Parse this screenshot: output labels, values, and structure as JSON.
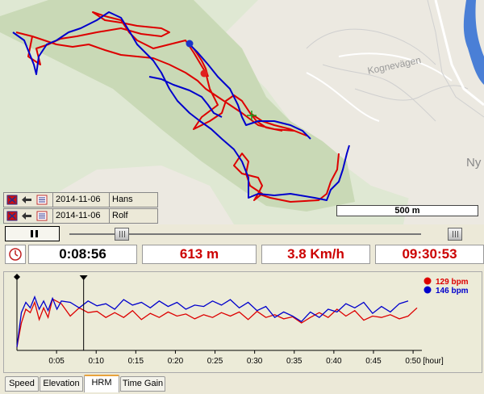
{
  "map": {
    "road_label": "Kognevägen",
    "place_label": "Ny",
    "scale_label": "500 m"
  },
  "runners": [
    {
      "date": "2014-11-06",
      "name": "Hans",
      "color": "#0000cc"
    },
    {
      "date": "2014-11-06",
      "name": "Rolf",
      "color": "#dd0000"
    }
  ],
  "stats": {
    "elapsed": "0:08:56",
    "distance": "613 m",
    "speed": "3.8 Km/h",
    "clock": "09:30:53"
  },
  "colors": {
    "stat_text": "#cc0000",
    "track_red": "#dd0000",
    "track_blue": "#0000cc"
  },
  "playback": {
    "position_fraction": 0.15
  },
  "icons": [
    "red-flag-icon",
    "arrow-left-icon",
    "list-icon",
    "pause-icon",
    "clock-icon"
  ],
  "tabs": [
    {
      "label": "Speed",
      "active": false
    },
    {
      "label": "Elevation",
      "active": false
    },
    {
      "label": "HRM",
      "active": true
    },
    {
      "label": "Time Gain",
      "active": false
    }
  ],
  "chart_data": {
    "type": "line",
    "xlabel": "[hour]",
    "x_ticks": [
      "0:05",
      "0:10",
      "0:15",
      "0:20",
      "0:25",
      "0:30",
      "0:35",
      "0:40",
      "0:45",
      "0:50"
    ],
    "xlim": [
      0,
      0.9
    ],
    "ylim": [
      0,
      100
    ],
    "cursor_x": 0.15,
    "series": [
      {
        "name": "129 bpm",
        "color": "#dd0000",
        "values": [
          [
            0,
            5
          ],
          [
            0.01,
            40
          ],
          [
            0.02,
            60
          ],
          [
            0.03,
            55
          ],
          [
            0.04,
            70
          ],
          [
            0.05,
            45
          ],
          [
            0.06,
            62
          ],
          [
            0.07,
            48
          ],
          [
            0.08,
            75
          ],
          [
            0.1,
            68
          ],
          [
            0.12,
            50
          ],
          [
            0.14,
            62
          ],
          [
            0.16,
            55
          ],
          [
            0.18,
            57
          ],
          [
            0.2,
            48
          ],
          [
            0.22,
            55
          ],
          [
            0.24,
            48
          ],
          [
            0.26,
            58
          ],
          [
            0.28,
            45
          ],
          [
            0.3,
            54
          ],
          [
            0.32,
            48
          ],
          [
            0.34,
            56
          ],
          [
            0.36,
            50
          ],
          [
            0.38,
            53
          ],
          [
            0.4,
            46
          ],
          [
            0.42,
            52
          ],
          [
            0.44,
            48
          ],
          [
            0.46,
            55
          ],
          [
            0.48,
            50
          ],
          [
            0.5,
            56
          ],
          [
            0.52,
            45
          ],
          [
            0.54,
            57
          ],
          [
            0.56,
            48
          ],
          [
            0.58,
            52
          ],
          [
            0.6,
            46
          ],
          [
            0.62,
            49
          ],
          [
            0.64,
            40
          ],
          [
            0.66,
            48
          ],
          [
            0.68,
            55
          ],
          [
            0.7,
            48
          ],
          [
            0.72,
            60
          ],
          [
            0.74,
            50
          ],
          [
            0.76,
            58
          ],
          [
            0.78,
            44
          ],
          [
            0.8,
            50
          ],
          [
            0.82,
            48
          ],
          [
            0.84,
            52
          ],
          [
            0.86,
            46
          ],
          [
            0.88,
            50
          ],
          [
            0.9,
            62
          ]
        ]
      },
      {
        "name": "146 bpm",
        "color": "#0000cc",
        "values": [
          [
            0,
            5
          ],
          [
            0.01,
            55
          ],
          [
            0.02,
            70
          ],
          [
            0.03,
            62
          ],
          [
            0.04,
            78
          ],
          [
            0.05,
            60
          ],
          [
            0.06,
            72
          ],
          [
            0.07,
            58
          ],
          [
            0.08,
            76
          ],
          [
            0.09,
            60
          ],
          [
            0.1,
            72
          ],
          [
            0.12,
            70
          ],
          [
            0.14,
            62
          ],
          [
            0.16,
            72
          ],
          [
            0.18,
            65
          ],
          [
            0.2,
            68
          ],
          [
            0.22,
            60
          ],
          [
            0.24,
            74
          ],
          [
            0.26,
            66
          ],
          [
            0.28,
            70
          ],
          [
            0.3,
            62
          ],
          [
            0.32,
            72
          ],
          [
            0.34,
            64
          ],
          [
            0.36,
            70
          ],
          [
            0.38,
            60
          ],
          [
            0.4,
            66
          ],
          [
            0.42,
            64
          ],
          [
            0.44,
            72
          ],
          [
            0.46,
            66
          ],
          [
            0.48,
            74
          ],
          [
            0.5,
            62
          ],
          [
            0.52,
            70
          ],
          [
            0.54,
            58
          ],
          [
            0.56,
            64
          ],
          [
            0.58,
            48
          ],
          [
            0.6,
            56
          ],
          [
            0.62,
            50
          ],
          [
            0.64,
            42
          ],
          [
            0.66,
            56
          ],
          [
            0.68,
            48
          ],
          [
            0.7,
            60
          ],
          [
            0.72,
            56
          ],
          [
            0.74,
            68
          ],
          [
            0.76,
            62
          ],
          [
            0.78,
            70
          ],
          [
            0.8,
            54
          ],
          [
            0.82,
            64
          ],
          [
            0.84,
            56
          ],
          [
            0.86,
            68
          ],
          [
            0.88,
            72
          ]
        ]
      }
    ]
  }
}
